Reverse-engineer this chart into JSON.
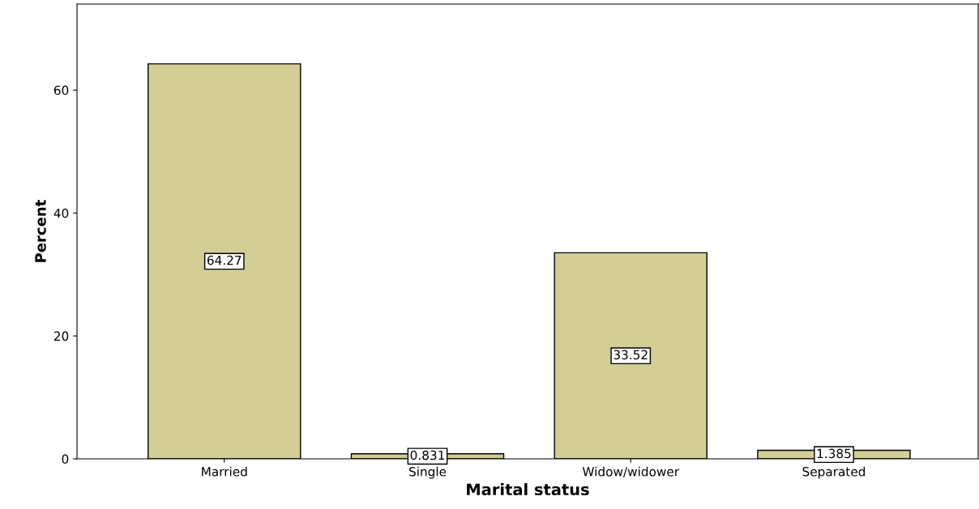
{
  "chart_data": {
    "type": "bar",
    "xlabel": "Marital status",
    "ylabel": "Percent",
    "categories": [
      "Married",
      "Single",
      "Widow/widower",
      "Separated"
    ],
    "values": [
      64.27,
      0.831,
      33.52,
      1.385
    ],
    "color": "#d3cd96",
    "data_labels": true,
    "ylim": [
      0,
      74
    ],
    "yticks": [
      0,
      20,
      40,
      60
    ],
    "grid": false,
    "legend": false
  }
}
